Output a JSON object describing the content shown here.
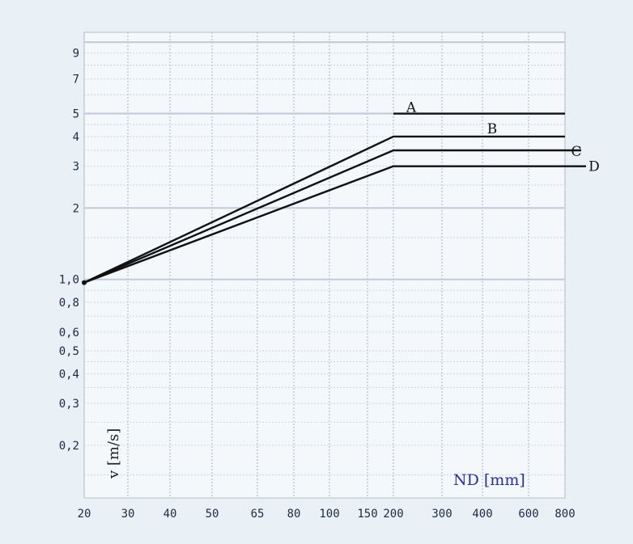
{
  "chart_data": {
    "type": "line",
    "title": "",
    "xlabel": "ND [mm]",
    "ylabel": "v [m/s]",
    "x_tick_labels": [
      "20",
      "30",
      "40",
      "50",
      "65",
      "80",
      "100",
      "150",
      "200",
      "300",
      "400",
      "600",
      "800"
    ],
    "y_tick_labels": [
      {
        "label": "9",
        "value": 9
      },
      {
        "label": "7",
        "value": 7
      },
      {
        "label": "5",
        "value": 5
      },
      {
        "label": "4",
        "value": 4
      },
      {
        "label": "3",
        "value": 3
      },
      {
        "label": "2",
        "value": 2
      },
      {
        "label": "1,0",
        "value": 1.0
      },
      {
        "label": "0,8",
        "value": 0.8
      },
      {
        "label": "0,6",
        "value": 0.6
      },
      {
        "label": "0,5",
        "value": 0.5
      },
      {
        "label": "0,4",
        "value": 0.4
      },
      {
        "label": "0,3",
        "value": 0.3
      },
      {
        "label": "0,2",
        "value": 0.2
      }
    ],
    "ylim": [
      0.12,
      11
    ],
    "y_scale": "log",
    "grid": true,
    "series": [
      {
        "name": "A",
        "x": [
          "200",
          "800"
        ],
        "y": [
          5.0,
          5.0
        ]
      },
      {
        "name": "B",
        "x": [
          "20",
          "200",
          "800"
        ],
        "y": [
          0.97,
          4.0,
          4.0
        ]
      },
      {
        "name": "C",
        "x": [
          "20",
          "200",
          "800"
        ],
        "y": [
          0.97,
          3.5,
          3.5
        ]
      },
      {
        "name": "D",
        "x": [
          "20",
          "200",
          "800"
        ],
        "y": [
          0.97,
          3.0,
          3.0
        ]
      }
    ]
  }
}
